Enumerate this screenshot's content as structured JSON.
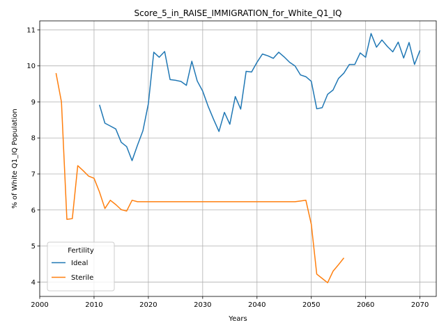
{
  "chart_data": {
    "type": "line",
    "title": "Score_5_in_RAISE_IMMIGRATION_for_White_Q1_IQ",
    "xlabel": "Years",
    "ylabel": "% of White Q1_IQ Population",
    "xlim": [
      2000,
      2073
    ],
    "ylim": [
      3.6,
      11.25
    ],
    "xticks": [
      2000,
      2010,
      2020,
      2030,
      2040,
      2050,
      2060,
      2070
    ],
    "yticks": [
      4,
      5,
      6,
      7,
      8,
      9,
      10,
      11
    ],
    "grid": true,
    "legend": {
      "title": "Fertility",
      "placement": "lower-left"
    },
    "series": [
      {
        "name": "Ideal",
        "color": "#1f77b4",
        "x": [
          2011,
          2012,
          2013,
          2014,
          2015,
          2016,
          2017,
          2018,
          2019,
          2020,
          2021,
          2022,
          2023,
          2024,
          2025,
          2026,
          2027,
          2028,
          2029,
          2030,
          2031,
          2032,
          2033,
          2034,
          2035,
          2036,
          2037,
          2038,
          2039,
          2040,
          2041,
          2042,
          2043,
          2044,
          2045,
          2046,
          2047,
          2048,
          2049,
          2050,
          2051,
          2052,
          2053,
          2054,
          2055,
          2056,
          2057,
          2058,
          2059,
          2060,
          2061,
          2062,
          2063,
          2064,
          2065,
          2066,
          2067,
          2068,
          2069,
          2070
        ],
        "y": [
          8.92,
          8.41,
          8.33,
          8.25,
          7.88,
          7.76,
          7.37,
          7.8,
          8.2,
          8.95,
          10.38,
          10.24,
          10.4,
          9.62,
          9.6,
          9.57,
          9.46,
          10.13,
          9.58,
          9.3,
          8.88,
          8.52,
          8.18,
          8.71,
          8.38,
          9.15,
          8.8,
          9.85,
          9.83,
          10.1,
          10.33,
          10.28,
          10.21,
          10.38,
          10.25,
          10.1,
          10.0,
          9.75,
          9.7,
          9.57,
          8.81,
          8.84,
          9.21,
          9.33,
          9.65,
          9.8,
          10.04,
          10.04,
          10.36,
          10.24,
          10.9,
          10.52,
          10.72,
          10.54,
          10.39,
          10.66,
          10.22,
          10.65,
          10.04,
          10.43
        ]
      },
      {
        "name": "Sterile",
        "color": "#ff7f0e",
        "x": [
          2003,
          2004,
          2005,
          2006,
          2007,
          2008,
          2009,
          2010,
          2011,
          2012,
          2013,
          2014,
          2015,
          2016,
          2017,
          2018,
          2019,
          2020,
          2021,
          2022,
          2023,
          2024,
          2025,
          2026,
          2027,
          2028,
          2029,
          2030,
          2031,
          2032,
          2033,
          2034,
          2035,
          2036,
          2037,
          2038,
          2039,
          2040,
          2041,
          2042,
          2043,
          2044,
          2045,
          2046,
          2047,
          2048,
          2049,
          2050,
          2051,
          2052,
          2053,
          2054,
          2055,
          2056
        ],
        "y": [
          9.8,
          9.0,
          5.74,
          5.76,
          7.23,
          7.09,
          6.94,
          6.88,
          6.5,
          6.04,
          6.27,
          6.15,
          6.01,
          5.97,
          6.27,
          6.23,
          6.23,
          6.23,
          6.23,
          6.23,
          6.23,
          6.23,
          6.23,
          6.23,
          6.23,
          6.23,
          6.23,
          6.23,
          6.23,
          6.23,
          6.23,
          6.23,
          6.23,
          6.23,
          6.23,
          6.23,
          6.23,
          6.23,
          6.23,
          6.23,
          6.23,
          6.23,
          6.23,
          6.23,
          6.23,
          6.25,
          6.27,
          5.6,
          4.22,
          4.1,
          3.98,
          4.3,
          4.48,
          4.67
        ]
      }
    ]
  }
}
